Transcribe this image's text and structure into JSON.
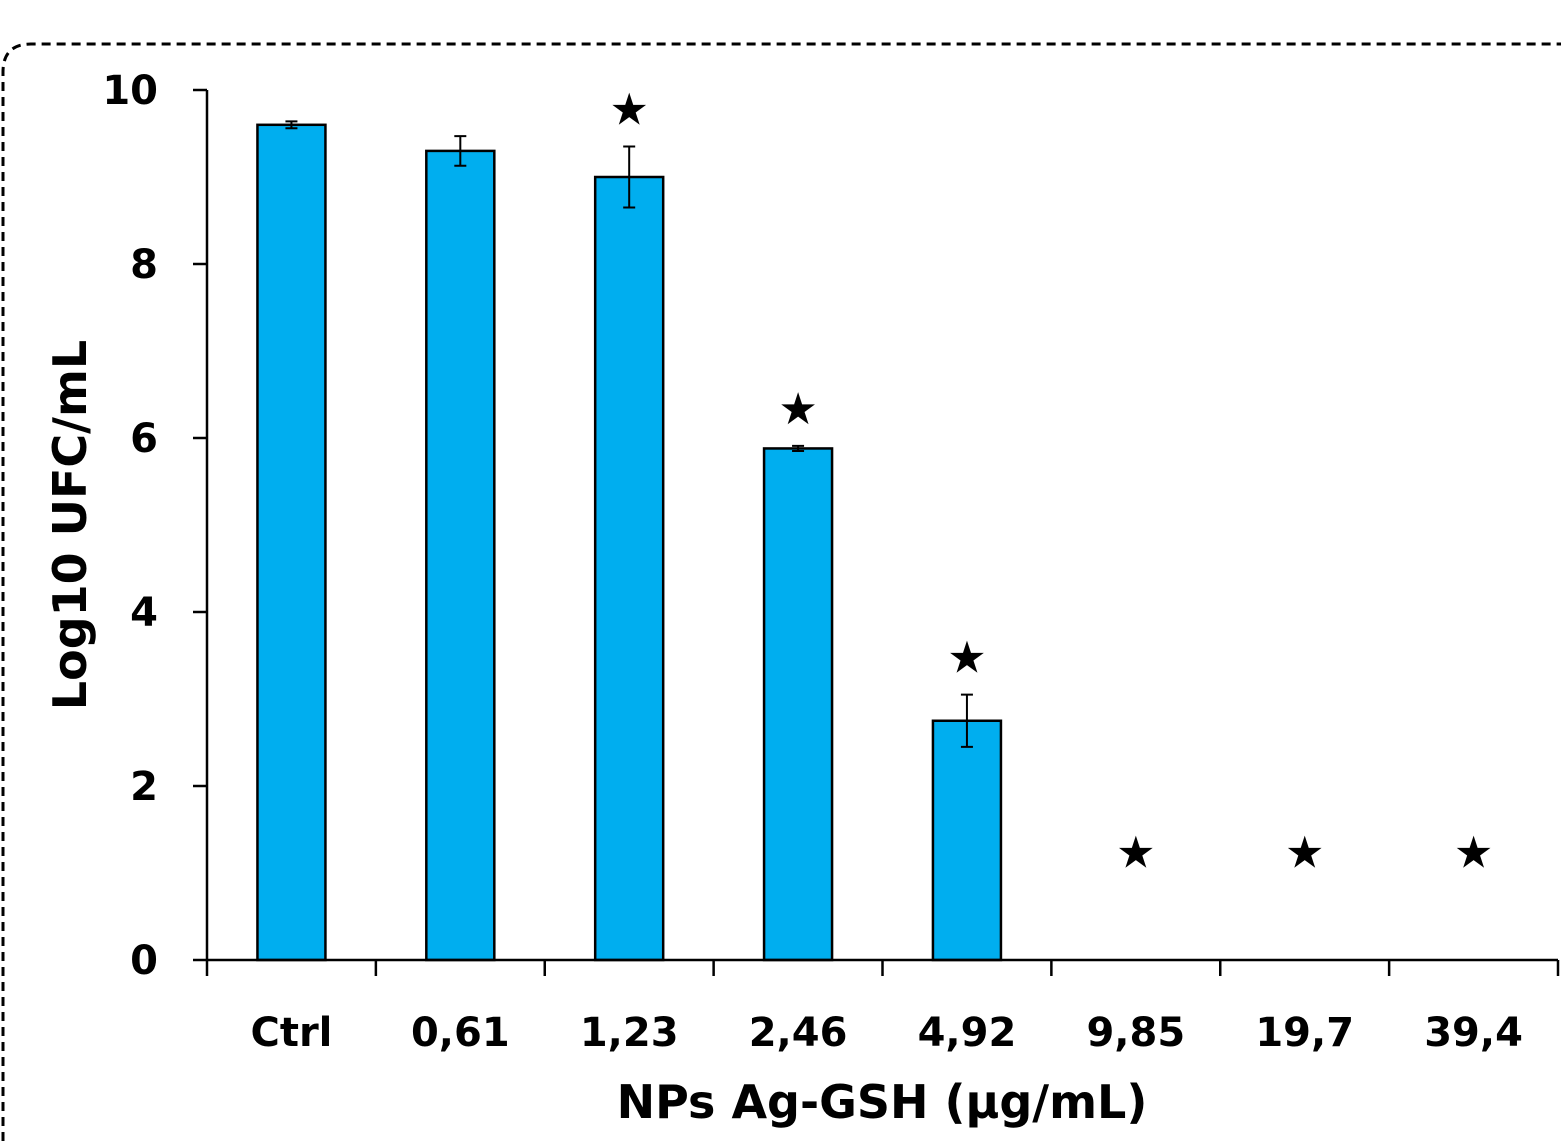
{
  "chart_data": {
    "type": "bar",
    "title": "",
    "xlabel": "NPs Ag-GSH (µg/mL)",
    "ylabel": "Log10 UFC/mL",
    "categories": [
      "Ctrl",
      "0,61",
      "1,23",
      "2,46",
      "4,92",
      "9,85",
      "19,7",
      "39,4"
    ],
    "values": [
      9.6,
      9.3,
      9.0,
      5.88,
      2.75,
      0,
      0,
      0
    ],
    "errors": [
      0.04,
      0.17,
      0.35,
      0.03,
      0.3,
      0,
      0,
      0
    ],
    "significant": [
      false,
      false,
      true,
      true,
      true,
      true,
      true,
      true
    ],
    "significance_marker": "★",
    "ylim": [
      0,
      10
    ],
    "yticks": [
      "0",
      "2",
      "4",
      "6",
      "8",
      "10"
    ],
    "bar_color": "#00AEEF",
    "legend": "none",
    "grid": false
  }
}
